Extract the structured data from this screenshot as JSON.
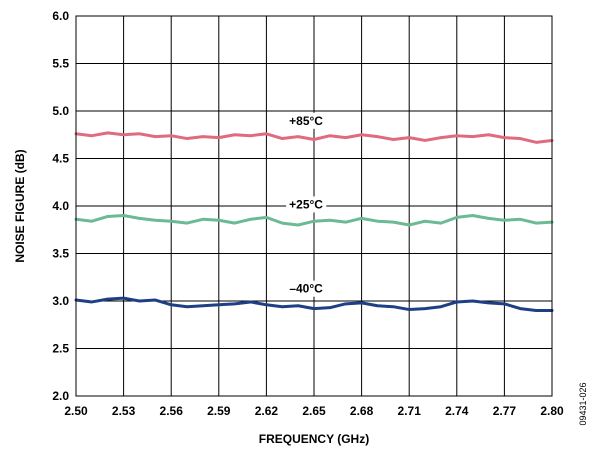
{
  "chart_data": {
    "type": "line",
    "title": "",
    "xlabel": "FREQUENCY (GHz)",
    "ylabel": "NOISE FIGURE (dB)",
    "xlim": [
      2.5,
      2.8
    ],
    "ylim": [
      2.0,
      6.0
    ],
    "x_ticks": [
      "2.50",
      "2.53",
      "2.56",
      "2.59",
      "2.62",
      "2.65",
      "2.68",
      "2.71",
      "2.74",
      "2.77",
      "2.80"
    ],
    "y_ticks": [
      "2.0",
      "2.5",
      "3.0",
      "3.5",
      "4.0",
      "4.5",
      "5.0",
      "5.5",
      "6.0"
    ],
    "grid": true,
    "x": [
      2.5,
      2.51,
      2.52,
      2.53,
      2.54,
      2.55,
      2.56,
      2.57,
      2.58,
      2.59,
      2.6,
      2.61,
      2.62,
      2.63,
      2.64,
      2.65,
      2.66,
      2.67,
      2.68,
      2.69,
      2.7,
      2.71,
      2.72,
      2.73,
      2.74,
      2.75,
      2.76,
      2.77,
      2.78,
      2.79,
      2.8
    ],
    "series": [
      {
        "name": "+85°C",
        "color": "#e06a7e",
        "values": [
          4.76,
          4.74,
          4.77,
          4.75,
          4.76,
          4.73,
          4.74,
          4.71,
          4.73,
          4.72,
          4.75,
          4.74,
          4.76,
          4.71,
          4.73,
          4.7,
          4.74,
          4.72,
          4.75,
          4.73,
          4.7,
          4.72,
          4.69,
          4.72,
          4.74,
          4.73,
          4.75,
          4.72,
          4.71,
          4.67,
          4.69
        ]
      },
      {
        "name": "+25°C",
        "color": "#6cba94",
        "values": [
          3.86,
          3.84,
          3.89,
          3.9,
          3.87,
          3.85,
          3.84,
          3.82,
          3.86,
          3.85,
          3.82,
          3.86,
          3.88,
          3.82,
          3.8,
          3.84,
          3.85,
          3.83,
          3.87,
          3.84,
          3.83,
          3.8,
          3.84,
          3.82,
          3.88,
          3.9,
          3.87,
          3.85,
          3.86,
          3.82,
          3.83
        ]
      },
      {
        "name": "–40°C",
        "color": "#1e3f86",
        "values": [
          3.01,
          2.99,
          3.02,
          3.03,
          3.0,
          3.01,
          2.96,
          2.94,
          2.95,
          2.96,
          2.97,
          2.99,
          2.96,
          2.94,
          2.95,
          2.92,
          2.93,
          2.97,
          2.98,
          2.95,
          2.94,
          2.91,
          2.92,
          2.94,
          2.99,
          3.0,
          2.98,
          2.97,
          2.92,
          2.9,
          2.9
        ]
      }
    ],
    "annotations": [
      {
        "text": "+85°C",
        "series": 0
      },
      {
        "text": "+25°C",
        "series": 1
      },
      {
        "text": "–40°C",
        "series": 2
      }
    ]
  },
  "figure_id": "09431-026"
}
